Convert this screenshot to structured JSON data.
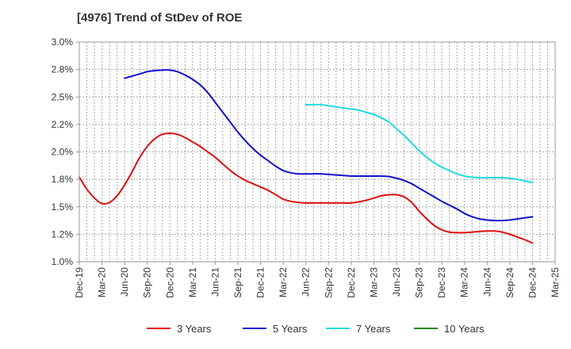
{
  "chart_data": {
    "type": "line",
    "title": "[4976]  Trend of StDev of ROE",
    "xlabel": "",
    "ylabel": "",
    "ylim": [
      1.0,
      3.0
    ],
    "y_ticks": [
      "1.0%",
      "1.2%",
      "1.5%",
      "1.8%",
      "2.0%",
      "2.2%",
      "2.5%",
      "2.8%",
      "3.0%"
    ],
    "y_tick_values": [
      1.0,
      1.25,
      1.5,
      1.75,
      2.0,
      2.25,
      2.5,
      2.75,
      3.0
    ],
    "x_ticks": [
      "Dec-19",
      "Mar-20",
      "Jun-20",
      "Sep-20",
      "Dec-20",
      "Mar-21",
      "Jun-21",
      "Sep-21",
      "Dec-21",
      "Mar-22",
      "Jun-22",
      "Sep-22",
      "Dec-22",
      "Mar-23",
      "Jun-23",
      "Sep-23",
      "Dec-23",
      "Mar-24",
      "Jun-24",
      "Sep-24",
      "Dec-24",
      "Mar-25"
    ],
    "grid": true,
    "legend_position": "bottom",
    "series": [
      {
        "name": "3 Years",
        "color": "#dd1111",
        "x": [
          "Dec-19",
          "Jan-20",
          "Feb-20",
          "Mar-20",
          "Apr-20",
          "May-20",
          "Jun-20",
          "Jul-20",
          "Aug-20",
          "Sep-20",
          "Oct-20",
          "Nov-20",
          "Dec-20",
          "Jan-21",
          "Feb-21",
          "Mar-21",
          "Apr-21",
          "May-21",
          "Jun-21",
          "Jul-21",
          "Aug-21",
          "Sep-21",
          "Oct-21",
          "Nov-21",
          "Dec-21",
          "Jan-22",
          "Feb-22",
          "Mar-22",
          "Apr-22",
          "May-22",
          "Jun-22",
          "Jul-22",
          "Aug-22",
          "Sep-22",
          "Oct-22",
          "Nov-22",
          "Dec-22",
          "Jan-23",
          "Feb-23",
          "Mar-23",
          "Apr-23",
          "May-23",
          "Jun-23",
          "Jul-23",
          "Aug-23",
          "Sep-23",
          "Oct-23",
          "Nov-23",
          "Dec-23",
          "Jan-24",
          "Feb-24",
          "Mar-24",
          "Apr-24",
          "May-24",
          "Jun-24",
          "Jul-24",
          "Aug-24",
          "Sep-24",
          "Oct-24",
          "Nov-24",
          "Dec-24"
        ],
        "values": [
          1.77,
          1.66,
          1.58,
          1.53,
          1.54,
          1.6,
          1.7,
          1.82,
          1.95,
          2.05,
          2.12,
          2.16,
          2.17,
          2.16,
          2.13,
          2.09,
          2.05,
          2.0,
          1.95,
          1.89,
          1.83,
          1.78,
          1.74,
          1.71,
          1.68,
          1.65,
          1.61,
          1.57,
          1.55,
          1.54,
          1.535,
          1.535,
          1.535,
          1.535,
          1.535,
          1.535,
          1.535,
          1.545,
          1.56,
          1.58,
          1.6,
          1.61,
          1.61,
          1.59,
          1.54,
          1.46,
          1.39,
          1.33,
          1.29,
          1.27,
          1.265,
          1.265,
          1.27,
          1.275,
          1.28,
          1.28,
          1.27,
          1.25,
          1.225,
          1.2,
          1.17
        ]
      },
      {
        "name": "5 Years",
        "color": "#1111cc",
        "x": [
          "Jun-20",
          "Jul-20",
          "Aug-20",
          "Sep-20",
          "Oct-20",
          "Nov-20",
          "Dec-20",
          "Jan-21",
          "Feb-21",
          "Mar-21",
          "Apr-21",
          "May-21",
          "Jun-21",
          "Jul-21",
          "Aug-21",
          "Sep-21",
          "Oct-21",
          "Nov-21",
          "Dec-21",
          "Jan-22",
          "Feb-22",
          "Mar-22",
          "Apr-22",
          "May-22",
          "Jun-22",
          "Jul-22",
          "Aug-22",
          "Sep-22",
          "Oct-22",
          "Nov-22",
          "Dec-22",
          "Jan-23",
          "Feb-23",
          "Mar-23",
          "Apr-23",
          "May-23",
          "Jun-23",
          "Jul-23",
          "Aug-23",
          "Sep-23",
          "Oct-23",
          "Nov-23",
          "Dec-23",
          "Jan-24",
          "Feb-24",
          "Mar-24",
          "Apr-24",
          "May-24",
          "Jun-24",
          "Jul-24",
          "Aug-24",
          "Sep-24",
          "Oct-24",
          "Nov-24",
          "Dec-24"
        ],
        "values": [
          2.67,
          2.69,
          2.71,
          2.73,
          2.74,
          2.745,
          2.745,
          2.73,
          2.7,
          2.66,
          2.61,
          2.54,
          2.45,
          2.36,
          2.27,
          2.18,
          2.1,
          2.03,
          1.97,
          1.92,
          1.87,
          1.83,
          1.81,
          1.8,
          1.8,
          1.8,
          1.8,
          1.795,
          1.79,
          1.785,
          1.78,
          1.78,
          1.78,
          1.78,
          1.78,
          1.775,
          1.76,
          1.74,
          1.71,
          1.67,
          1.63,
          1.59,
          1.55,
          1.515,
          1.48,
          1.44,
          1.41,
          1.39,
          1.38,
          1.375,
          1.375,
          1.38,
          1.39,
          1.4,
          1.41
        ]
      },
      {
        "name": "7 Years",
        "color": "#22dddd",
        "x": [
          "Jun-22",
          "Jul-22",
          "Aug-22",
          "Sep-22",
          "Oct-22",
          "Nov-22",
          "Dec-22",
          "Jan-23",
          "Feb-23",
          "Mar-23",
          "Apr-23",
          "May-23",
          "Jun-23",
          "Jul-23",
          "Aug-23",
          "Sep-23",
          "Oct-23",
          "Nov-23",
          "Dec-23",
          "Jan-24",
          "Feb-24",
          "Mar-24",
          "Apr-24",
          "May-24",
          "Jun-24",
          "Jul-24",
          "Aug-24",
          "Sep-24",
          "Oct-24",
          "Nov-24",
          "Dec-24"
        ],
        "values": [
          2.43,
          2.43,
          2.43,
          2.42,
          2.41,
          2.4,
          2.39,
          2.38,
          2.36,
          2.34,
          2.31,
          2.27,
          2.21,
          2.15,
          2.08,
          2.01,
          1.95,
          1.9,
          1.86,
          1.83,
          1.8,
          1.78,
          1.77,
          1.765,
          1.765,
          1.765,
          1.765,
          1.76,
          1.75,
          1.735,
          1.72
        ]
      },
      {
        "name": "10 Years",
        "color": "#228822",
        "x": [],
        "values": []
      }
    ]
  }
}
